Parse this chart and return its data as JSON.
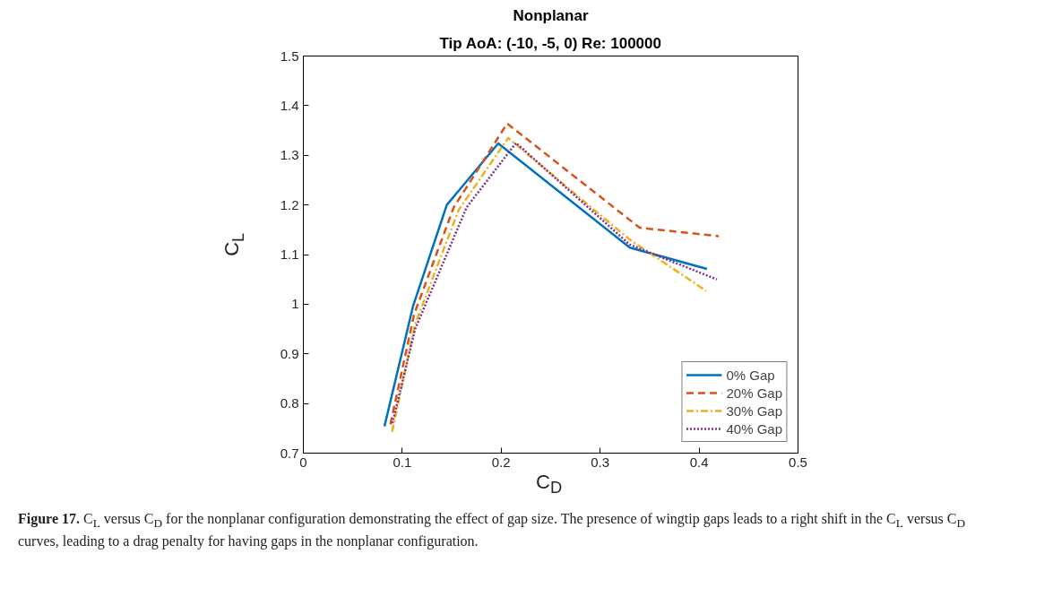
{
  "chart_data": {
    "type": "line",
    "title": "Nonplanar",
    "subtitle": "Tip AoA: (-10, -5, 0) Re: 100000",
    "xlabel": "C$_{D}$",
    "ylabel": "C$_{L}$",
    "xlim": [
      0,
      0.5
    ],
    "ylim": [
      0.7,
      1.5
    ],
    "xticks": [
      0,
      0.1,
      0.2,
      0.3,
      0.4,
      0.5
    ],
    "yticks": [
      0.7,
      0.8,
      0.9,
      1,
      1.1,
      1.2,
      1.3,
      1.4,
      1.5
    ],
    "grid": false,
    "legend": "bottom right",
    "marker": "none",
    "series": [
      {
        "name": "0% Gap",
        "color": "#0072bd",
        "line_style": "solid",
        "x": [
          0.082,
          0.111,
          0.145,
          0.197,
          0.33,
          0.408
        ],
        "values": [
          0.754,
          0.997,
          1.2,
          1.324,
          1.114,
          1.071
        ]
      },
      {
        "name": "20% Gap",
        "color": "#d95319",
        "line_style": "dashed",
        "x": [
          0.088,
          0.112,
          0.152,
          0.206,
          0.34,
          0.42
        ],
        "values": [
          0.758,
          0.98,
          1.195,
          1.364,
          1.154,
          1.137
        ]
      },
      {
        "name": "30% Gap",
        "color": "#edb120",
        "line_style": "dashdot",
        "x": [
          0.0897,
          0.113,
          0.157,
          0.207,
          0.33,
          0.407
        ],
        "values": [
          0.743,
          0.96,
          1.19,
          1.335,
          1.13,
          1.027
        ]
      },
      {
        "name": "40% Gap",
        "color": "#7e2f8e",
        "line_style": "dotted",
        "x": [
          0.09,
          0.113,
          0.165,
          0.215,
          0.33,
          0.418
        ],
        "values": [
          0.76,
          0.95,
          1.195,
          1.325,
          1.12,
          1.05
        ]
      }
    ],
    "annotations": [
      "Figure 17. C$_{L}$ versus C$_{D}$ for the nonplanar configuration demonstrating the effect of gap size. The presence of wingtip gaps leads to a right shift in the C$_{L}$ versus C$_{D}$ curves, leading to a drag penalty for having gaps in the nonplanar configuration."
    ]
  }
}
